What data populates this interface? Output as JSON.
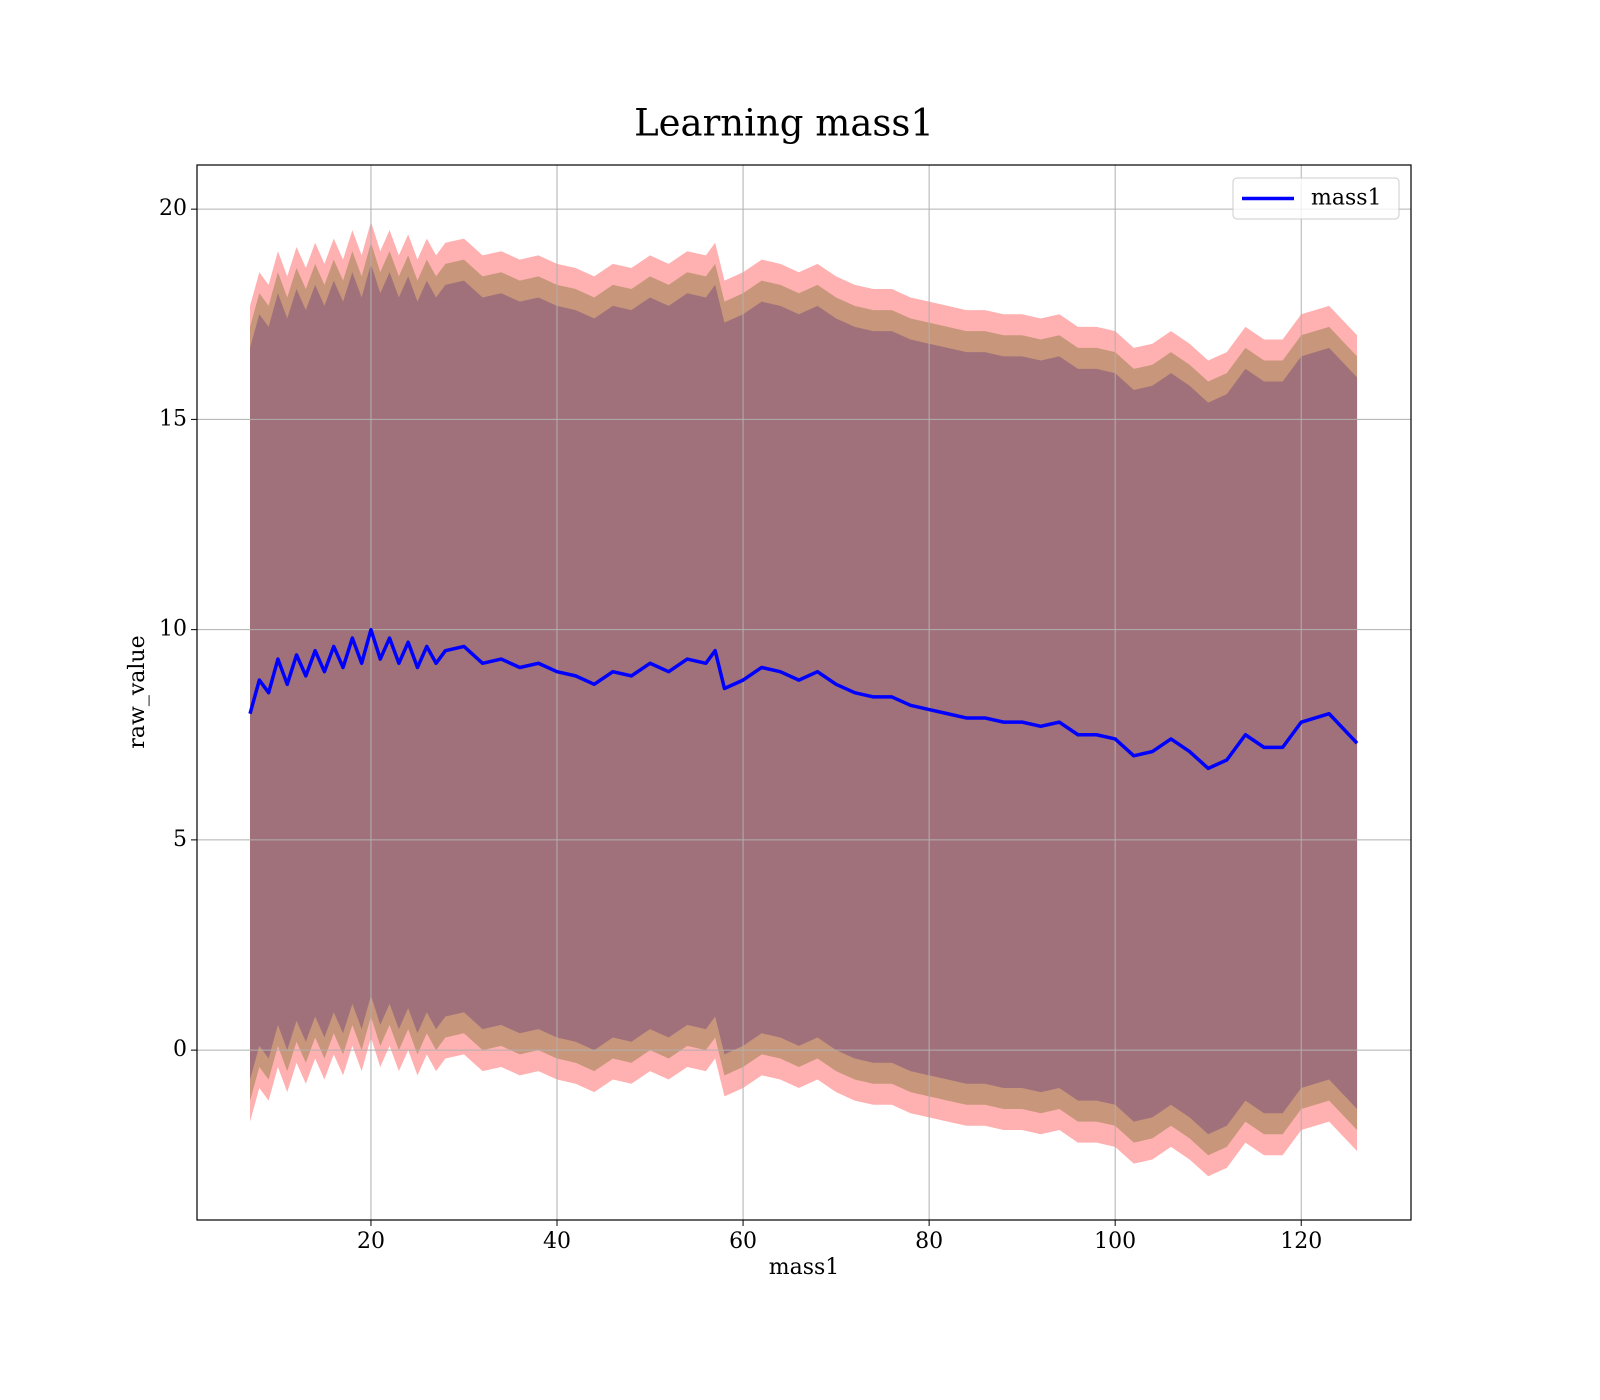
{
  "chart_data": {
    "type": "line",
    "title": "Learning mass1",
    "xlabel": "mass1",
    "ylabel": "raw_value",
    "x": [
      7,
      8,
      9,
      10,
      11,
      12,
      13,
      14,
      15,
      16,
      17,
      18,
      19,
      20,
      21,
      22,
      23,
      24,
      25,
      26,
      27,
      28,
      30,
      32,
      34,
      36,
      38,
      40,
      42,
      44,
      46,
      48,
      50,
      52,
      54,
      56,
      57,
      58,
      60,
      62,
      64,
      66,
      68,
      70,
      72,
      74,
      76,
      78,
      80,
      82,
      84,
      86,
      88,
      90,
      92,
      94,
      96,
      98,
      100,
      102,
      104,
      106,
      108,
      110,
      112,
      114,
      116,
      118,
      120,
      123,
      126
    ],
    "series": [
      {
        "name": "mass1",
        "color": "#0000ff",
        "values": [
          8.0,
          8.8,
          8.5,
          9.3,
          8.7,
          9.4,
          8.9,
          9.5,
          9.0,
          9.6,
          9.1,
          9.8,
          9.2,
          10.0,
          9.3,
          9.8,
          9.2,
          9.7,
          9.1,
          9.6,
          9.2,
          9.5,
          9.6,
          9.2,
          9.3,
          9.1,
          9.2,
          9.0,
          8.9,
          8.7,
          9.0,
          8.9,
          9.2,
          9.0,
          9.3,
          9.2,
          9.5,
          8.6,
          8.8,
          9.1,
          9.0,
          8.8,
          9.0,
          8.7,
          8.5,
          8.4,
          8.4,
          8.2,
          8.1,
          8.0,
          7.9,
          7.9,
          7.8,
          7.8,
          7.7,
          7.8,
          7.5,
          7.5,
          7.4,
          7.0,
          7.1,
          7.4,
          7.1,
          6.7,
          6.9,
          7.5,
          7.2,
          7.2,
          7.8,
          8.0,
          7.3
        ]
      }
    ],
    "bands": [
      {
        "color": "#ffb0b0",
        "halfwidth": 9.7
      },
      {
        "color": "#c8967a",
        "halfwidth": 9.2
      },
      {
        "color": "#a0717a",
        "halfwidth": 8.7
      }
    ],
    "xlim": [
      1.3,
      131.8
    ],
    "ylim": [
      -4.04,
      21.05
    ],
    "xticks": [
      20,
      40,
      60,
      80,
      100,
      120
    ],
    "yticks": [
      0,
      5,
      10,
      15,
      20
    ],
    "grid": true,
    "legend": "upper right"
  }
}
